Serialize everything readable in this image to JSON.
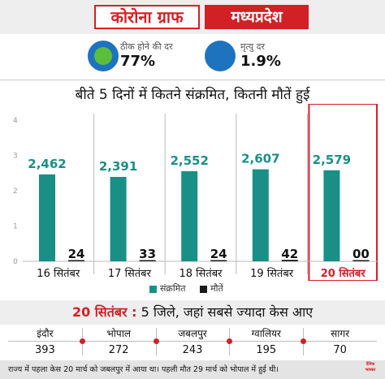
{
  "header": {
    "title": "कोरोना ग्राफ",
    "state": "मध्यप्रदेश"
  },
  "rates": {
    "recovery": {
      "label": "ठीक होने की दर",
      "value": "77%"
    },
    "death": {
      "label": "मृत्यु दर",
      "value": "1.9%"
    }
  },
  "subtitle": "बीते 5 दिनों में कितने संक्रमित, कितनी मौतें हुई",
  "colors": {
    "accent": "#d32027",
    "infected": "#1a8f86",
    "deaths": "#1a1a1a",
    "recovery": "#5cbf3c",
    "blue": "#1e73be"
  },
  "chart_data": {
    "type": "bar",
    "categories": [
      "16 सितंबर",
      "17 सितंबर",
      "18 सितंबर",
      "19 सितंबर",
      "20 सितंबर"
    ],
    "highlight_category": "20 सितंबर",
    "y_ticks": [
      "0",
      "1",
      "2",
      "3",
      "4"
    ],
    "ylim": [
      0,
      4000
    ],
    "series": [
      {
        "name": "संक्रमित",
        "values": [
          2462,
          2391,
          2552,
          2607,
          2579
        ],
        "labels": [
          "2,462",
          "2,391",
          "2,552",
          "2,607",
          "2,579"
        ],
        "color": "#1a8f86"
      },
      {
        "name": "मौतें",
        "values": [
          24,
          33,
          24,
          42,
          0
        ],
        "labels": [
          "24",
          "33",
          "24",
          "42",
          "00"
        ],
        "color": "#1a1a1a"
      }
    ],
    "legend_position": "bottom-center",
    "grid": false
  },
  "districts": {
    "headline_date": "20 सितंबर :",
    "headline_text": "5 जिले, जहां सबसे ज्यादा केस आए",
    "items": [
      {
        "name": "इंदौर",
        "value": "393"
      },
      {
        "name": "भोपाल",
        "value": "272"
      },
      {
        "name": "जबलपुर",
        "value": "243"
      },
      {
        "name": "ग्वालियर",
        "value": "195"
      },
      {
        "name": "सागर",
        "value": "70"
      }
    ]
  },
  "footer": {
    "text": "राज्य में पहला केस 20 मार्च को जबलपुर में आया था। पहली मौत 29 मार्च को भोपाल में हुई थी।",
    "logo_line1": "दैनिक",
    "logo_line2": "भास्कर"
  }
}
